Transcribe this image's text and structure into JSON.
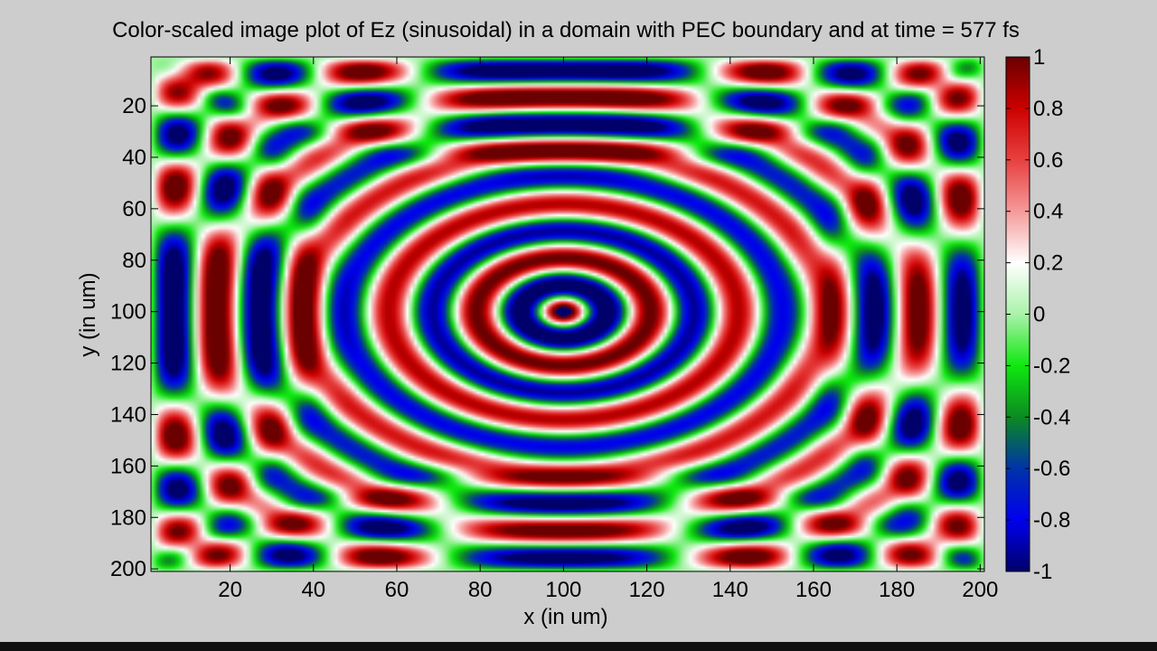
{
  "chart_data": {
    "type": "heatmap",
    "title": "Color-scaled image plot of Ez (sinusoidal) in a domain with PEC boundary and at time = 577 fs",
    "xlabel": "x (in um)",
    "ylabel": "y (in um)",
    "xlim": [
      1,
      201
    ],
    "ylim": [
      201,
      1
    ],
    "y_axis_direction": "reversed",
    "x_ticks": [
      20,
      40,
      60,
      80,
      100,
      120,
      140,
      160,
      180,
      200
    ],
    "y_ticks": [
      20,
      40,
      60,
      80,
      100,
      120,
      140,
      160,
      180,
      200
    ],
    "colorbar": {
      "range": [
        -1,
        1
      ],
      "ticks": [
        1,
        0.8,
        0.6,
        0.4,
        0.2,
        0,
        -0.2,
        -0.4,
        -0.6,
        -0.8,
        -1
      ],
      "tick_labels": [
        "1",
        "0.8",
        "0.6",
        "0.4",
        "0.2",
        "0",
        "-0.2",
        "-0.4",
        "-0.6",
        "-0.8",
        "-1"
      ],
      "colorscale": [
        {
          "value": -1,
          "color": "#00006a"
        },
        {
          "value": -0.8,
          "color": "#0000ee"
        },
        {
          "value": -0.6,
          "color": "#0033aa"
        },
        {
          "value": -0.4,
          "color": "#0c8a22"
        },
        {
          "value": -0.2,
          "color": "#0ee80e"
        },
        {
          "value": 0,
          "color": "#aaf2aa"
        },
        {
          "value": 0.2,
          "color": "#ffffff"
        },
        {
          "value": 0.4,
          "color": "#f59a9a"
        },
        {
          "value": 0.6,
          "color": "#e84040"
        },
        {
          "value": 0.8,
          "color": "#cc0000"
        },
        {
          "value": 1,
          "color": "#6a0000"
        }
      ]
    },
    "field": {
      "source_x": 100,
      "source_y": 100,
      "domain": [
        1,
        201
      ],
      "boundary": "PEC",
      "wavelength_um": 21,
      "time_fs": 577
    }
  }
}
